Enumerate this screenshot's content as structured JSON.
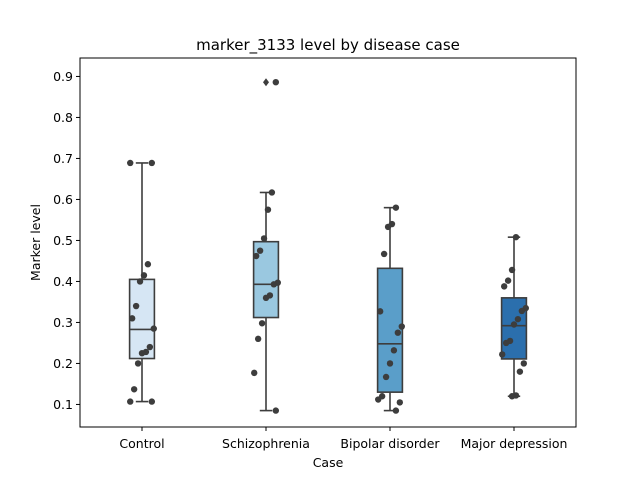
{
  "chart_data": {
    "type": "box",
    "title": "marker_3133 level by disease case",
    "xlabel": "Case",
    "ylabel": "Marker level",
    "ylim": [
      0.045,
      0.945
    ],
    "yticks": [
      0.1,
      0.2,
      0.3,
      0.4,
      0.5,
      0.6,
      0.7,
      0.8,
      0.9
    ],
    "grid": false,
    "legend": false,
    "categories": [
      "Control",
      "Schizophrenia",
      "Bipolar disorder",
      "Major depression"
    ],
    "box_colors": [
      "#d6e6f4",
      "#9ac8e0",
      "#5a9ec9",
      "#2b6fad"
    ],
    "boxes": [
      {
        "category": "Control",
        "whisker_low": 0.107,
        "q1": 0.212,
        "median": 0.283,
        "q3": 0.405,
        "whisker_high": 0.689,
        "outliers": []
      },
      {
        "category": "Schizophrenia",
        "whisker_low": 0.085,
        "q1": 0.312,
        "median": 0.393,
        "q3": 0.497,
        "whisker_high": 0.617,
        "outliers": [
          0.886
        ]
      },
      {
        "category": "Bipolar disorder",
        "whisker_low": 0.085,
        "q1": 0.13,
        "median": 0.248,
        "q3": 0.432,
        "whisker_high": 0.58,
        "outliers": []
      },
      {
        "category": "Major depression",
        "whisker_low": 0.12,
        "q1": 0.211,
        "median": 0.292,
        "q3": 0.36,
        "whisker_high": 0.508,
        "outliers": []
      }
    ],
    "points": [
      {
        "category": "Control",
        "values": [
          0.689,
          0.689,
          0.442,
          0.415,
          0.4,
          0.34,
          0.31,
          0.285,
          0.24,
          0.228,
          0.225,
          0.2,
          0.137,
          0.107,
          0.107
        ]
      },
      {
        "category": "Schizophrenia",
        "values": [
          0.886,
          0.617,
          0.575,
          0.505,
          0.475,
          0.462,
          0.397,
          0.393,
          0.366,
          0.36,
          0.298,
          0.26,
          0.177,
          0.085
        ]
      },
      {
        "category": "Bipolar disorder",
        "values": [
          0.58,
          0.54,
          0.533,
          0.467,
          0.327,
          0.29,
          0.275,
          0.232,
          0.2,
          0.167,
          0.12,
          0.112,
          0.105,
          0.085
        ]
      },
      {
        "category": "Major depression",
        "values": [
          0.508,
          0.428,
          0.402,
          0.388,
          0.335,
          0.328,
          0.308,
          0.295,
          0.255,
          0.25,
          0.222,
          0.2,
          0.18,
          0.122,
          0.12
        ]
      }
    ]
  }
}
